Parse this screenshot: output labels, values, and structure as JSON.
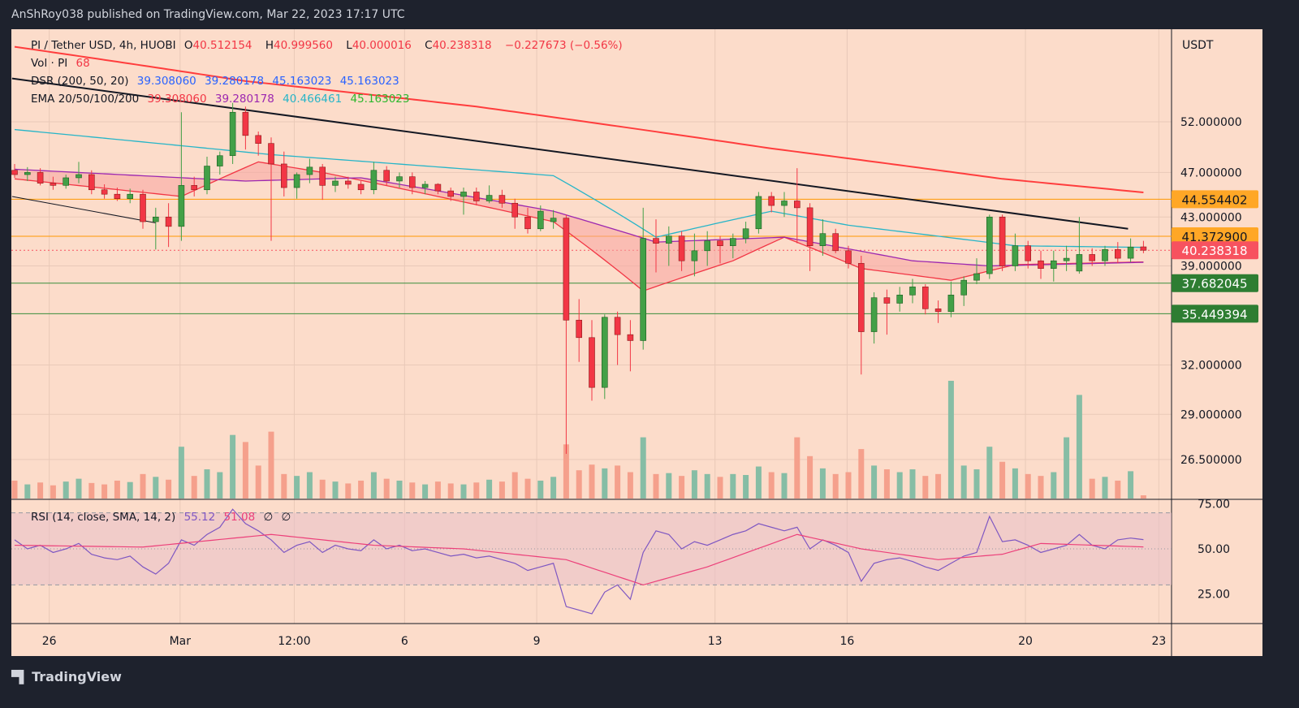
{
  "header": {
    "published": "AnShRoy038 published on TradingView.com, Mar 22, 2023 17:17 UTC"
  },
  "footer": {
    "brand": "TradingView",
    "logo_icon": "tradingview-logo-icon"
  },
  "legend": {
    "symbol": "PI / Tether USD, 4h, HUOBI",
    "o_label": "O",
    "o": "40.512154",
    "h_label": "H",
    "h": "40.999560",
    "l_label": "L",
    "l": "40.000016",
    "c_label": "C",
    "c": "40.238318",
    "change": "−0.227673 (−0.56%)",
    "vol_label": "Vol · PI",
    "vol": "68",
    "dsr_label": "DSR (200, 50, 20)",
    "dsr_values": [
      "39.308060",
      "39.280178",
      "45.163023",
      "45.163023"
    ],
    "ema_label": "EMA 20/50/100/200",
    "ema_values": [
      "39.308060",
      "39.280178",
      "40.466461",
      "45.163023"
    ],
    "rsi_label": "RSI (14, close, SMA, 14, 2)",
    "rsi_values": [
      "55.12",
      "51.08",
      "∅",
      "∅"
    ]
  },
  "colors": {
    "background": "#fcdcca",
    "up": "#43a047",
    "down": "#f23645",
    "vol_up": "#86bda5",
    "vol_down": "#f5a08c",
    "ema20": "#f23645",
    "ema50": "#9c27b0",
    "ema100": "#26b5c8",
    "ema200": "#ff3d3d",
    "trendline": "#131722",
    "rsi": "#7e57c2",
    "rsi_sma": "#ec407a",
    "level_orange": "#ff9800",
    "level_green": "#388e3c",
    "last_price": "#f7525f"
  },
  "chart_data": {
    "type": "candlestick",
    "title": "PI / Tether USD, 4h, HUOBI",
    "currency_label": "USDT",
    "y_scale": "log",
    "ylim": [
      25.2,
      62
    ],
    "y_ticks": [
      "52.000000",
      "47.000000",
      "43.000000",
      "39.000000",
      "32.000000",
      "29.000000",
      "26.500000"
    ],
    "x_ticks": [
      {
        "label": "26",
        "index": 2.7
      },
      {
        "label": "Mar",
        "index": 12.9
      },
      {
        "label": "12:00",
        "index": 21.8
      },
      {
        "label": "6",
        "index": 30.4
      },
      {
        "label": "9",
        "index": 40.7
      },
      {
        "label": "13",
        "index": 54.6
      },
      {
        "label": "16",
        "index": 64.9
      },
      {
        "label": "20",
        "index": 78.8
      },
      {
        "label": "23",
        "index": 89.2
      }
    ],
    "ohlc": [
      [
        47.2,
        47.8,
        46.5,
        46.8
      ],
      [
        46.8,
        47.5,
        46.2,
        47.0
      ],
      [
        47.0,
        47.4,
        45.8,
        46.0
      ],
      [
        46.0,
        46.6,
        45.4,
        45.8
      ],
      [
        45.8,
        46.8,
        45.5,
        46.5
      ],
      [
        46.5,
        48.0,
        46.0,
        46.8
      ],
      [
        46.8,
        47.2,
        45.0,
        45.4
      ],
      [
        45.4,
        45.9,
        44.6,
        45.0
      ],
      [
        45.0,
        45.6,
        44.4,
        44.6
      ],
      [
        44.6,
        45.5,
        44.2,
        45.0
      ],
      [
        45.0,
        45.4,
        42.0,
        42.6
      ],
      [
        42.6,
        43.8,
        40.3,
        43.0
      ],
      [
        43.0,
        44.2,
        40.5,
        42.2
      ],
      [
        42.2,
        53.0,
        41.0,
        45.8
      ],
      [
        45.8,
        46.6,
        44.8,
        45.4
      ],
      [
        45.4,
        48.5,
        45.0,
        47.6
      ],
      [
        47.6,
        49.0,
        46.8,
        48.6
      ],
      [
        48.6,
        54.0,
        47.8,
        53.0
      ],
      [
        53.0,
        53.6,
        49.2,
        50.6
      ],
      [
        50.6,
        51.0,
        48.6,
        49.8
      ],
      [
        49.8,
        50.4,
        41.0,
        47.8
      ],
      [
        47.8,
        49.0,
        44.8,
        45.6
      ],
      [
        45.6,
        47.0,
        44.6,
        46.8
      ],
      [
        46.8,
        48.3,
        46.0,
        47.5
      ],
      [
        47.5,
        47.8,
        44.5,
        45.8
      ],
      [
        45.8,
        46.6,
        45.2,
        46.2
      ],
      [
        46.2,
        46.6,
        45.5,
        45.9
      ],
      [
        45.9,
        46.2,
        45.0,
        45.4
      ],
      [
        45.4,
        48.0,
        45.0,
        47.2
      ],
      [
        47.2,
        47.6,
        45.8,
        46.2
      ],
      [
        46.2,
        47.0,
        45.6,
        46.6
      ],
      [
        46.6,
        47.0,
        45.0,
        45.6
      ],
      [
        45.6,
        46.2,
        45.0,
        45.9
      ],
      [
        45.9,
        46.0,
        45.0,
        45.3
      ],
      [
        45.3,
        45.6,
        44.4,
        44.8
      ],
      [
        44.8,
        45.6,
        43.2,
        45.2
      ],
      [
        45.2,
        45.6,
        44.0,
        44.4
      ],
      [
        44.4,
        45.8,
        44.2,
        44.9
      ],
      [
        44.9,
        45.4,
        43.8,
        44.2
      ],
      [
        44.2,
        44.6,
        42.0,
        43.0
      ],
      [
        43.0,
        43.8,
        41.6,
        42.0
      ],
      [
        42.0,
        44.0,
        41.8,
        43.5
      ],
      [
        42.6,
        43.6,
        42.0,
        42.9
      ],
      [
        42.9,
        43.2,
        26.8,
        35.0
      ],
      [
        35.0,
        36.5,
        32.2,
        33.8
      ],
      [
        33.8,
        35.0,
        29.8,
        30.6
      ],
      [
        30.6,
        35.4,
        29.9,
        35.2
      ],
      [
        35.2,
        35.6,
        32.0,
        34.0
      ],
      [
        34.0,
        35.0,
        31.6,
        33.6
      ],
      [
        33.6,
        43.8,
        33.0,
        41.2
      ],
      [
        41.2,
        42.8,
        38.5,
        40.8
      ],
      [
        40.8,
        42.2,
        39.0,
        41.4
      ],
      [
        41.4,
        41.8,
        38.6,
        39.4
      ],
      [
        39.4,
        41.6,
        38.2,
        40.2
      ],
      [
        40.2,
        41.8,
        39.0,
        41.0
      ],
      [
        41.0,
        41.4,
        39.2,
        40.6
      ],
      [
        40.6,
        41.6,
        39.6,
        41.2
      ],
      [
        41.2,
        42.6,
        40.8,
        42.0
      ],
      [
        42.0,
        45.2,
        41.6,
        44.8
      ],
      [
        44.8,
        45.2,
        43.4,
        44.0
      ],
      [
        44.0,
        45.2,
        43.0,
        44.4
      ],
      [
        44.4,
        47.4,
        40.8,
        43.8
      ],
      [
        43.8,
        44.2,
        38.6,
        40.6
      ],
      [
        40.6,
        42.8,
        39.8,
        41.6
      ],
      [
        41.6,
        42.0,
        40.0,
        40.2
      ],
      [
        40.2,
        40.6,
        38.8,
        39.2
      ],
      [
        39.2,
        39.8,
        31.4,
        34.2
      ],
      [
        34.2,
        37.0,
        33.4,
        36.6
      ],
      [
        36.6,
        37.2,
        34.0,
        36.2
      ],
      [
        36.2,
        37.4,
        35.6,
        36.8
      ],
      [
        36.8,
        38.0,
        36.2,
        37.4
      ],
      [
        37.4,
        37.6,
        35.4,
        35.8
      ],
      [
        35.8,
        36.4,
        34.8,
        35.6
      ],
      [
        35.6,
        37.8,
        35.2,
        36.8
      ],
      [
        36.8,
        38.2,
        36.0,
        37.9
      ],
      [
        37.9,
        39.6,
        37.6,
        38.4
      ],
      [
        38.4,
        43.2,
        38.0,
        43.0
      ],
      [
        43.0,
        43.2,
        38.6,
        39.0
      ],
      [
        39.0,
        41.6,
        38.6,
        40.6
      ],
      [
        40.6,
        41.0,
        38.8,
        39.4
      ],
      [
        39.4,
        40.2,
        38.0,
        38.8
      ],
      [
        38.8,
        40.2,
        37.8,
        39.4
      ],
      [
        39.4,
        40.6,
        38.6,
        39.6
      ],
      [
        38.6,
        43.0,
        38.4,
        39.9
      ],
      [
        39.9,
        40.4,
        39.0,
        39.4
      ],
      [
        39.4,
        40.6,
        39.0,
        40.3
      ],
      [
        40.3,
        40.9,
        39.2,
        39.6
      ],
      [
        39.6,
        41.2,
        39.3,
        40.5
      ],
      [
        40.512154,
        40.99956,
        40.000016,
        40.238318
      ]
    ],
    "volume": [
      380,
      300,
      340,
      280,
      360,
      420,
      330,
      300,
      380,
      350,
      520,
      460,
      400,
      1100,
      480,
      620,
      560,
      1350,
      1200,
      700,
      1420,
      520,
      480,
      560,
      400,
      360,
      320,
      380,
      560,
      420,
      380,
      340,
      300,
      360,
      320,
      300,
      340,
      400,
      360,
      560,
      420,
      380,
      460,
      1150,
      600,
      720,
      640,
      700,
      560,
      1300,
      520,
      540,
      480,
      600,
      520,
      460,
      520,
      500,
      680,
      560,
      540,
      1300,
      900,
      640,
      520,
      560,
      1050,
      700,
      620,
      560,
      620,
      480,
      520,
      2500,
      700,
      620,
      1100,
      780,
      640,
      520,
      480,
      560,
      1300,
      2200,
      420,
      460,
      380,
      580,
      68
    ],
    "ema": [
      {
        "name": "EMA 20",
        "points": [
          [
            0,
            46.4
          ],
          [
            13,
            44.8
          ],
          [
            19,
            48.0
          ],
          [
            24,
            47.0
          ],
          [
            42,
            42.6
          ],
          [
            49,
            37.1
          ],
          [
            56,
            39.4
          ],
          [
            60,
            41.3
          ],
          [
            66,
            38.8
          ],
          [
            73,
            37.9
          ],
          [
            78,
            39.1
          ],
          [
            88,
            39.31
          ]
        ]
      },
      {
        "name": "EMA 50",
        "points": [
          [
            0,
            47.3
          ],
          [
            18,
            46.2
          ],
          [
            27,
            46.5
          ],
          [
            42,
            43.5
          ],
          [
            50,
            40.9
          ],
          [
            60,
            41.3
          ],
          [
            70,
            39.4
          ],
          [
            76,
            39.0
          ],
          [
            88,
            39.28
          ]
        ]
      },
      {
        "name": "EMA 100",
        "points": [
          [
            0,
            51.2
          ],
          [
            20,
            48.7
          ],
          [
            42,
            46.7
          ],
          [
            50,
            41.3
          ],
          [
            59,
            43.5
          ],
          [
            65,
            42.3
          ],
          [
            78,
            40.6
          ],
          [
            88,
            40.47
          ]
        ]
      },
      {
        "name": "EMA 200",
        "points": [
          [
            0,
            60.4
          ],
          [
            18,
            56.4
          ],
          [
            36,
            53.6
          ],
          [
            59,
            49.3
          ],
          [
            77,
            46.4
          ],
          [
            88,
            45.16
          ]
        ]
      }
    ],
    "trendlines": [
      [
        [
          -0.2,
          56.7
        ],
        [
          86.8,
          42.0
        ]
      ],
      [
        [
          -0.2,
          44.8
        ],
        [
          11,
          42.5
        ]
      ]
    ],
    "levels": [
      {
        "value": "44.554402",
        "color": "orange"
      },
      {
        "value": "41.372900",
        "color": "orange"
      },
      {
        "value": "37.682045",
        "color": "green"
      },
      {
        "value": "35.449394",
        "color": "green"
      }
    ],
    "last_price": "40.238318",
    "rsi": {
      "ylim": [
        0,
        100
      ],
      "band": [
        30,
        70
      ],
      "ticks": [
        "75.00",
        "50.00",
        "25.00"
      ],
      "values": [
        55,
        50,
        52,
        48,
        50,
        53,
        47,
        45,
        44,
        46,
        40,
        36,
        42,
        55,
        52,
        58,
        62,
        72,
        64,
        60,
        55,
        48,
        52,
        54,
        48,
        52,
        50,
        49,
        55,
        50,
        52,
        49,
        50,
        48,
        46,
        47,
        45,
        46,
        44,
        42,
        38,
        40,
        42,
        18,
        16,
        14,
        26,
        30,
        22,
        48,
        60,
        58,
        50,
        54,
        52,
        55,
        58,
        60,
        64,
        62,
        60,
        62,
        50,
        55,
        52,
        48,
        32,
        42,
        44,
        45,
        43,
        40,
        38,
        42,
        46,
        48,
        68,
        54,
        55,
        52,
        48,
        50,
        52,
        58,
        52,
        50,
        55,
        56,
        55.12
      ],
      "sma": [
        [
          0,
          52
        ],
        [
          10,
          51
        ],
        [
          20,
          58
        ],
        [
          28,
          52
        ],
        [
          35,
          50
        ],
        [
          43,
          44
        ],
        [
          49,
          30
        ],
        [
          54,
          40
        ],
        [
          61,
          58
        ],
        [
          66,
          50
        ],
        [
          72,
          44
        ],
        [
          77,
          47
        ],
        [
          80,
          53
        ],
        [
          88,
          51.08
        ]
      ]
    }
  }
}
